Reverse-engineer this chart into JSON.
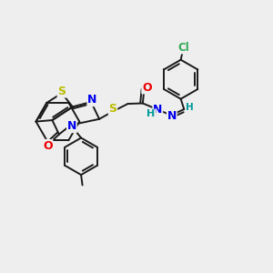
{
  "bg_color": "#eeeeee",
  "bond_color": "#1a1a1a",
  "bond_width": 1.4,
  "atom_colors": {
    "S": "#bbbb00",
    "N": "#0000ee",
    "O": "#ee0000",
    "Cl": "#33aa55",
    "H": "#009999",
    "C": "#1a1a1a"
  },
  "font_size": 7.5
}
